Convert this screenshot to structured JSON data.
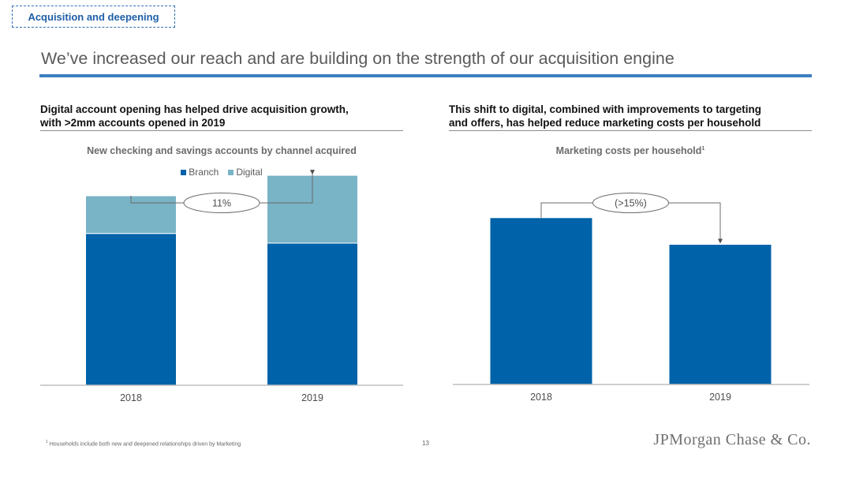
{
  "section_tag": "Acquisition and deepening",
  "title": "We’ve increased our reach and are building on the strength of our acquisition engine",
  "left_panel": {
    "heading_lines": [
      "Digital account opening has helped drive acquisition growth,",
      "with >2mm accounts opened in 2019"
    ]
  },
  "right_panel": {
    "heading_lines": [
      "This shift to digital, combined with improvements to targeting",
      "and offers, has helped reduce marketing costs per household"
    ]
  },
  "chart_data": [
    {
      "type": "bar",
      "stacked": true,
      "title": "New checking and savings accounts by channel acquired",
      "categories": [
        "2018",
        "2019"
      ],
      "series": [
        {
          "name": "Branch",
          "values": [
            1.41,
            1.32
          ],
          "color": "#0062a8"
        },
        {
          "name": "Digital",
          "values": [
            0.35,
            0.63
          ],
          "color": "#79b3c6"
        }
      ],
      "ylim": [
        0,
        2.2
      ],
      "legend_position": "top",
      "annotation": {
        "text": "11%",
        "from": "2018",
        "to": "2019"
      },
      "grid": false
    },
    {
      "type": "bar",
      "title": "Marketing costs per household",
      "title_superscript": "1",
      "categories": [
        "2018",
        "2019"
      ],
      "series": [
        {
          "values": [
            1.0,
            0.84
          ],
          "color": "#0062a8"
        }
      ],
      "ylim": [
        0,
        1.42
      ],
      "annotation": {
        "text": "(>15%)",
        "from": "2018",
        "to": "2019"
      },
      "grid": false
    }
  ],
  "footnote": {
    "marker": "1",
    "text": "Households include both new and deepened relationships driven by Marketing"
  },
  "page_number": "13",
  "logo": {
    "text": "JPMorgan Chase & Co.",
    "color": "#6f6f6f"
  },
  "colors": {
    "accent": "#3d7fc1",
    "branch": "#0062a8",
    "digital": "#79b3c6"
  }
}
